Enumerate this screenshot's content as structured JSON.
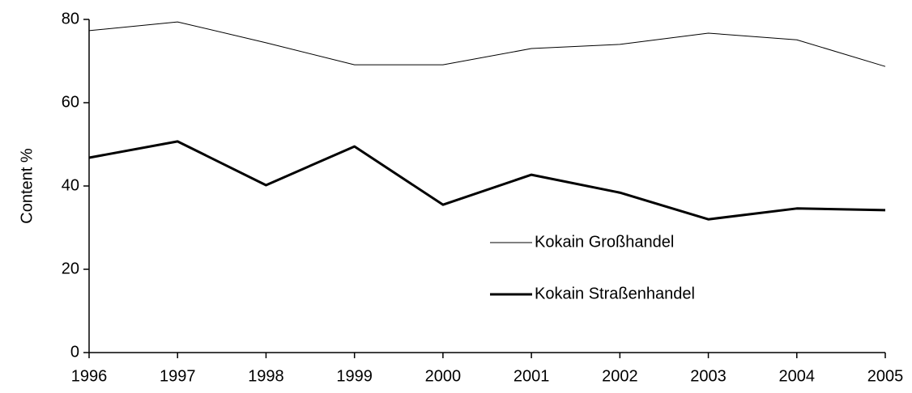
{
  "chart_data": {
    "type": "line",
    "ylabel": "Content %",
    "x": [
      1996,
      1997,
      1998,
      1999,
      2000,
      2001,
      2002,
      2003,
      2004,
      2005
    ],
    "xlim": [
      1996,
      2005
    ],
    "xticks": [
      1996,
      1997,
      1998,
      1999,
      2000,
      2001,
      2002,
      2003,
      2004,
      2005
    ],
    "ylim": [
      0,
      80
    ],
    "yticks": [
      0,
      20,
      40,
      60,
      80
    ],
    "grid": false,
    "legend": "lower right",
    "series": [
      {
        "name": "Kokain Großhandel",
        "color": "#000000",
        "line_width": 1,
        "values": [
          77.3,
          79.4,
          74.4,
          69.1,
          69.1,
          73.0,
          74.0,
          76.7,
          75.1,
          68.7
        ]
      },
      {
        "name": "Kokain Straßenhandel",
        "color": "#000000",
        "line_width": 3,
        "values": [
          46.8,
          50.7,
          40.2,
          49.5,
          35.5,
          42.7,
          38.4,
          32.0,
          34.6,
          34.2
        ]
      }
    ]
  }
}
